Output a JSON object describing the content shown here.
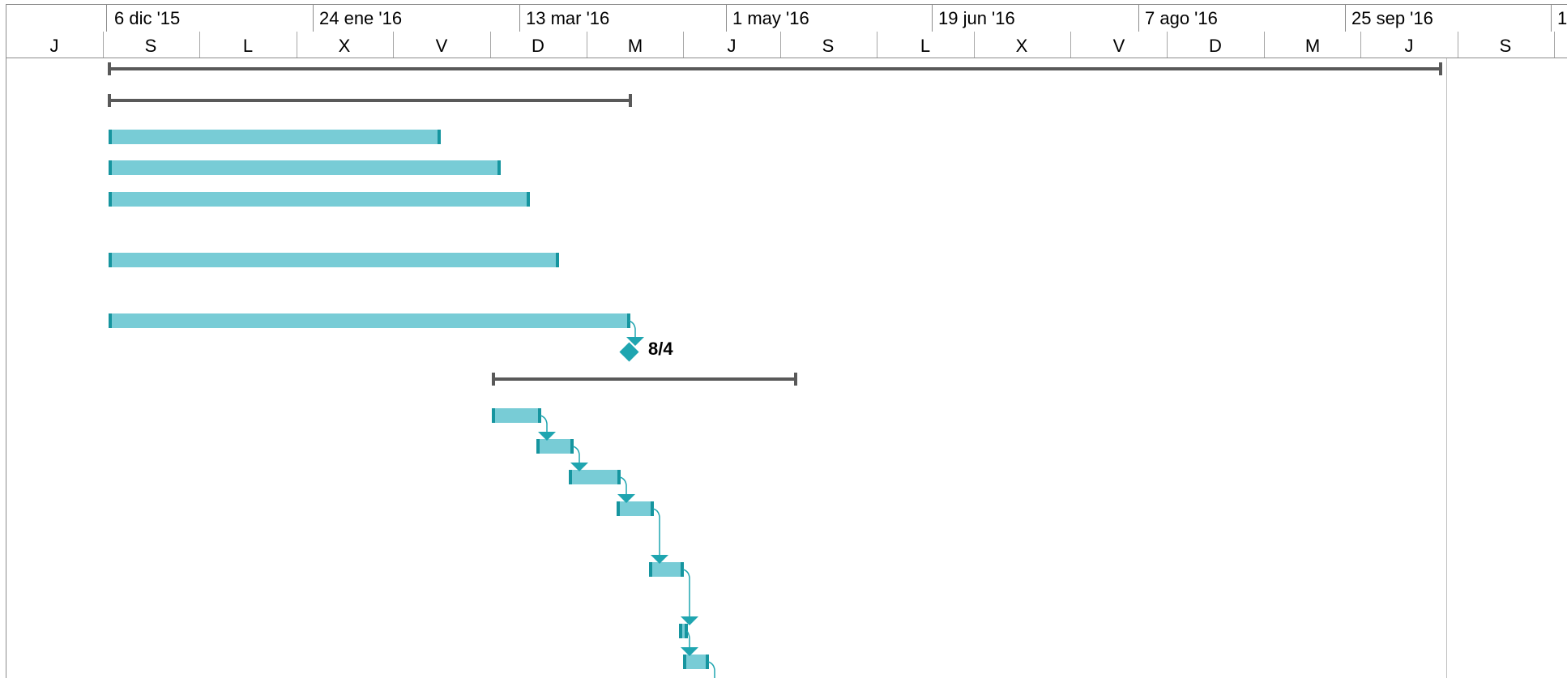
{
  "timescale": {
    "major": [
      "6 dic '15",
      "24 ene '16",
      "13 mar '16",
      "1 may '16",
      "19 jun '16",
      "7 ago '16",
      "25 sep '16",
      "1"
    ],
    "minor": [
      "J",
      "S",
      "L",
      "X",
      "V",
      "D",
      "M",
      "J",
      "S",
      "L",
      "X",
      "V",
      "D",
      "M",
      "J",
      "S"
    ]
  },
  "milestone": {
    "label": "8/4"
  },
  "colors": {
    "task_fill": "#78ccd6",
    "task_edge": "#16959f",
    "summary": "#595959",
    "link": "#1fa5b0",
    "grid": "#bfbfbf"
  }
}
